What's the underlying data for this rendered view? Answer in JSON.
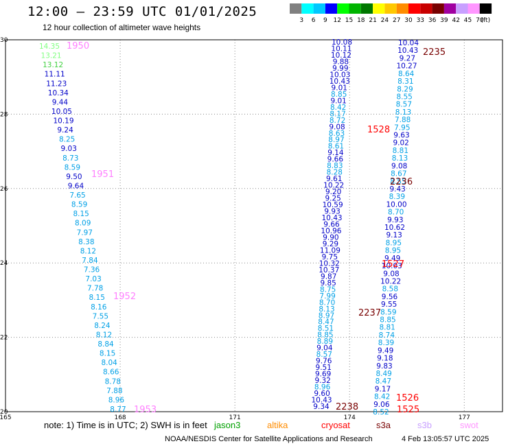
{
  "header": {
    "title": "12:00 – 23:59 UTC 01/01/2025",
    "subtitle": "12 hour collection of altimeter wave heights"
  },
  "colorbar": {
    "unit": "(ft)",
    "bins": [
      {
        "label": "3",
        "color": "#808080"
      },
      {
        "label": "6",
        "color": "#00ffff"
      },
      {
        "label": "9",
        "color": "#00c8ff"
      },
      {
        "label": "12",
        "color": "#0000ff"
      },
      {
        "label": "15",
        "color": "#00ff00"
      },
      {
        "label": "18",
        "color": "#00b400"
      },
      {
        "label": "21",
        "color": "#007800"
      },
      {
        "label": "24",
        "color": "#ffff00"
      },
      {
        "label": "27",
        "color": "#ffc800"
      },
      {
        "label": "30",
        "color": "#ff8c00"
      },
      {
        "label": "33",
        "color": "#ff0000"
      },
      {
        "label": "36",
        "color": "#c80000"
      },
      {
        "label": "39",
        "color": "#780000"
      },
      {
        "label": "42",
        "color": "#a000a0"
      },
      {
        "label": "45",
        "color": "#c8a0ff"
      },
      {
        "label": "70",
        "color": "#ff96ff"
      },
      {
        "label": "",
        "color": "#000000"
      }
    ]
  },
  "map": {
    "xlim": [
      165,
      178
    ],
    "ylim": [
      20,
      30
    ],
    "x_ticks": [
      "165",
      "168",
      "171",
      "174",
      "177"
    ],
    "y_ticks": [
      "30",
      "28",
      "26",
      "24",
      "22",
      "20"
    ]
  },
  "tracks": {
    "left": [
      {
        "v": "14.35",
        "c": "#80ff80"
      },
      {
        "v": "13.21",
        "c": "#80ff80"
      },
      {
        "v": "13.12",
        "c": "#40d040"
      },
      {
        "v": "11.11",
        "c": "#0000c8"
      },
      {
        "v": "11.23",
        "c": "#0000c8"
      },
      {
        "v": "10.34",
        "c": "#0000c8"
      },
      {
        "v": "9.44",
        "c": "#0000c8"
      },
      {
        "v": "10.05",
        "c": "#0000c8"
      },
      {
        "v": "10.19",
        "c": "#0000c8"
      },
      {
        "v": "9.24",
        "c": "#0000c8"
      },
      {
        "v": "8.25",
        "c": "#00a0e6"
      },
      {
        "v": "9.03",
        "c": "#0000c8"
      },
      {
        "v": "8.73",
        "c": "#00a0e6"
      },
      {
        "v": "8.59",
        "c": "#00a0e6"
      },
      {
        "v": "9.50",
        "c": "#0000c8"
      },
      {
        "v": "9.64",
        "c": "#0000c8"
      },
      {
        "v": "7.65",
        "c": "#00a0e6"
      },
      {
        "v": "8.59",
        "c": "#00a0e6"
      },
      {
        "v": "8.15",
        "c": "#00a0e6"
      },
      {
        "v": "8.09",
        "c": "#00a0e6"
      },
      {
        "v": "7.97",
        "c": "#00a0e6"
      },
      {
        "v": "8.38",
        "c": "#00a0e6"
      },
      {
        "v": "8.12",
        "c": "#00a0e6"
      },
      {
        "v": "7.84",
        "c": "#00a0e6"
      },
      {
        "v": "7.36",
        "c": "#00a0e6"
      },
      {
        "v": "7.03",
        "c": "#00a0e6"
      },
      {
        "v": "7.78",
        "c": "#00a0e6"
      },
      {
        "v": "8.15",
        "c": "#00a0e6"
      },
      {
        "v": "8.16",
        "c": "#00a0e6"
      },
      {
        "v": "7.55",
        "c": "#00a0e6"
      },
      {
        "v": "8.24",
        "c": "#00a0e6"
      },
      {
        "v": "8.12",
        "c": "#00a0e6"
      },
      {
        "v": "8.84",
        "c": "#00a0e6"
      },
      {
        "v": "8.15",
        "c": "#00a0e6"
      },
      {
        "v": "8.04",
        "c": "#00a0e6"
      },
      {
        "v": "8.66",
        "c": "#00a0e6"
      },
      {
        "v": "8.78",
        "c": "#00a0e6"
      },
      {
        "v": "7.88",
        "c": "#00a0e6"
      },
      {
        "v": "8.96",
        "c": "#00a0e6"
      },
      {
        "v": "8.77",
        "c": "#00a0e6"
      }
    ],
    "mid": [
      {
        "v": "10.08",
        "c": "#0000c8"
      },
      {
        "v": "10.11",
        "c": "#0000c8"
      },
      {
        "v": "10.12",
        "c": "#0000c8"
      },
      {
        "v": "9.88",
        "c": "#0000c8"
      },
      {
        "v": "9.99",
        "c": "#0000c8"
      },
      {
        "v": "10.03",
        "c": "#0000c8"
      },
      {
        "v": "10.43",
        "c": "#0000c8"
      },
      {
        "v": "9.01",
        "c": "#0000c8"
      },
      {
        "v": "8.85",
        "c": "#00a0e6"
      },
      {
        "v": "9.01",
        "c": "#0000c8"
      },
      {
        "v": "8.42",
        "c": "#00a0e6"
      },
      {
        "v": "8.17",
        "c": "#00a0e6"
      },
      {
        "v": "8.72",
        "c": "#00a0e6"
      },
      {
        "v": "9.08",
        "c": "#0000c8"
      },
      {
        "v": "8.63",
        "c": "#00a0e6"
      },
      {
        "v": "8.97",
        "c": "#00a0e6"
      },
      {
        "v": "8.61",
        "c": "#00a0e6"
      },
      {
        "v": "9.14",
        "c": "#0000c8"
      },
      {
        "v": "9.66",
        "c": "#0000c8"
      },
      {
        "v": "8.83",
        "c": "#00a0e6"
      },
      {
        "v": "8.28",
        "c": "#00a0e6"
      },
      {
        "v": "9.61",
        "c": "#0000c8"
      },
      {
        "v": "10.22",
        "c": "#0000c8"
      },
      {
        "v": "9.20",
        "c": "#0000c8"
      },
      {
        "v": "9.25",
        "c": "#0000c8"
      },
      {
        "v": "10.59",
        "c": "#0000c8"
      },
      {
        "v": "9.93",
        "c": "#0000c8"
      },
      {
        "v": "10.43",
        "c": "#0000c8"
      },
      {
        "v": "9.66",
        "c": "#0000c8"
      },
      {
        "v": "10.96",
        "c": "#0000c8"
      },
      {
        "v": "9.90",
        "c": "#0000c8"
      },
      {
        "v": "9.29",
        "c": "#0000c8"
      },
      {
        "v": "11.09",
        "c": "#0000c8"
      },
      {
        "v": "9.75",
        "c": "#0000c8"
      },
      {
        "v": "10.32",
        "c": "#0000c8"
      },
      {
        "v": "10.37",
        "c": "#0000c8"
      },
      {
        "v": "9.87",
        "c": "#0000c8"
      },
      {
        "v": "9.85",
        "c": "#0000c8"
      },
      {
        "v": "8.75",
        "c": "#00a0e6"
      },
      {
        "v": "7.99",
        "c": "#00a0e6"
      },
      {
        "v": "8.70",
        "c": "#00a0e6"
      },
      {
        "v": "8.13",
        "c": "#00a0e6"
      },
      {
        "v": "8.97",
        "c": "#00a0e6"
      },
      {
        "v": "8.47",
        "c": "#00a0e6"
      },
      {
        "v": "8.51",
        "c": "#00a0e6"
      },
      {
        "v": "8.85",
        "c": "#00a0e6"
      },
      {
        "v": "8.89",
        "c": "#00a0e6"
      },
      {
        "v": "9.04",
        "c": "#0000c8"
      },
      {
        "v": "8.57",
        "c": "#00a0e6"
      },
      {
        "v": "9.76",
        "c": "#0000c8"
      },
      {
        "v": "9.51",
        "c": "#0000c8"
      },
      {
        "v": "9.69",
        "c": "#0000c8"
      },
      {
        "v": "9.32",
        "c": "#0000c8"
      },
      {
        "v": "8.96",
        "c": "#00a0e6"
      },
      {
        "v": "9.60",
        "c": "#0000c8"
      },
      {
        "v": "10.43",
        "c": "#0000c8"
      },
      {
        "v": "9.34",
        "c": "#0000c8"
      }
    ],
    "right": [
      {
        "v": "10.04",
        "c": "#0000c8"
      },
      {
        "v": "10.43",
        "c": "#0000c8"
      },
      {
        "v": "9.27",
        "c": "#0000c8"
      },
      {
        "v": "10.27",
        "c": "#0000c8"
      },
      {
        "v": "8.64",
        "c": "#00a0e6"
      },
      {
        "v": "8.31",
        "c": "#00a0e6"
      },
      {
        "v": "8.29",
        "c": "#00a0e6"
      },
      {
        "v": "8.55",
        "c": "#00a0e6"
      },
      {
        "v": "8.57",
        "c": "#00a0e6"
      },
      {
        "v": "8.13",
        "c": "#00a0e6"
      },
      {
        "v": "7.88",
        "c": "#00a0e6"
      },
      {
        "v": "7.95",
        "c": "#00a0e6"
      },
      {
        "v": "9.63",
        "c": "#0000c8"
      },
      {
        "v": "9.02",
        "c": "#0000c8"
      },
      {
        "v": "8.81",
        "c": "#00a0e6"
      },
      {
        "v": "8.13",
        "c": "#00a0e6"
      },
      {
        "v": "9.08",
        "c": "#0000c8"
      },
      {
        "v": "8.67",
        "c": "#00a0e6"
      },
      {
        "v": "8.55",
        "c": "#00a0e6"
      },
      {
        "v": "9.43",
        "c": "#0000c8"
      },
      {
        "v": "8.39",
        "c": "#00a0e6"
      },
      {
        "v": "10.00",
        "c": "#0000c8"
      },
      {
        "v": "8.70",
        "c": "#00a0e6"
      },
      {
        "v": "9.93",
        "c": "#0000c8"
      },
      {
        "v": "10.62",
        "c": "#0000c8"
      },
      {
        "v": "9.13",
        "c": "#0000c8"
      },
      {
        "v": "8.95",
        "c": "#00a0e6"
      },
      {
        "v": "8.95",
        "c": "#00a0e6"
      },
      {
        "v": "9.49",
        "c": "#0000c8"
      },
      {
        "v": "10.03",
        "c": "#0000c8"
      },
      {
        "v": "9.08",
        "c": "#0000c8"
      },
      {
        "v": "10.22",
        "c": "#0000c8"
      },
      {
        "v": "8.58",
        "c": "#00a0e6"
      },
      {
        "v": "9.56",
        "c": "#0000c8"
      },
      {
        "v": "9.55",
        "c": "#0000c8"
      },
      {
        "v": "8.59",
        "c": "#00a0e6"
      },
      {
        "v": "8.85",
        "c": "#00a0e6"
      },
      {
        "v": "8.81",
        "c": "#00a0e6"
      },
      {
        "v": "8.74",
        "c": "#00a0e6"
      },
      {
        "v": "8.39",
        "c": "#00a0e6"
      },
      {
        "v": "9.49",
        "c": "#0000c8"
      },
      {
        "v": "9.18",
        "c": "#0000c8"
      },
      {
        "v": "9.83",
        "c": "#0000c8"
      },
      {
        "v": "8.49",
        "c": "#00a0e6"
      },
      {
        "v": "8.47",
        "c": "#00a0e6"
      },
      {
        "v": "9.17",
        "c": "#0000c8"
      },
      {
        "v": "8.42",
        "c": "#00a0e6"
      },
      {
        "v": "9.06",
        "c": "#0000c8"
      },
      {
        "v": "8.52",
        "c": "#00a0e6"
      }
    ]
  },
  "time_labels": [
    {
      "t": "1950",
      "c": "#ff80ff"
    },
    {
      "t": "1951",
      "c": "#ff80ff"
    },
    {
      "t": "1952",
      "c": "#ff80ff"
    },
    {
      "t": "1953",
      "c": "#ff80ff"
    },
    {
      "t": "2235",
      "c": "#780000"
    },
    {
      "t": "1528",
      "c": "#ff0000"
    },
    {
      "t": "2236",
      "c": "#780000"
    },
    {
      "t": "1527",
      "c": "#ff0000"
    },
    {
      "t": "2237",
      "c": "#780000"
    },
    {
      "t": "2238",
      "c": "#780000"
    },
    {
      "t": "1526",
      "c": "#ff0000"
    },
    {
      "t": "1525",
      "c": "#ff0000"
    }
  ],
  "footer": {
    "note": "note:  1) Time is in UTC;  2) SWH is in feet",
    "satellites": [
      {
        "name": "jason3",
        "color": "#00a000"
      },
      {
        "name": "altika",
        "color": "#ff8c00"
      },
      {
        "name": "cryosat",
        "color": "#ff0000"
      },
      {
        "name": "s3a",
        "color": "#780000"
      },
      {
        "name": "s3b",
        "color": "#c8a0ff"
      },
      {
        "name": "swot",
        "color": "#ff96ff"
      }
    ],
    "credit": "NOAA/NESDIS Center for Satellite Applications and Research",
    "timestamp": "4 Feb 13:05:57 UTC 2025"
  }
}
